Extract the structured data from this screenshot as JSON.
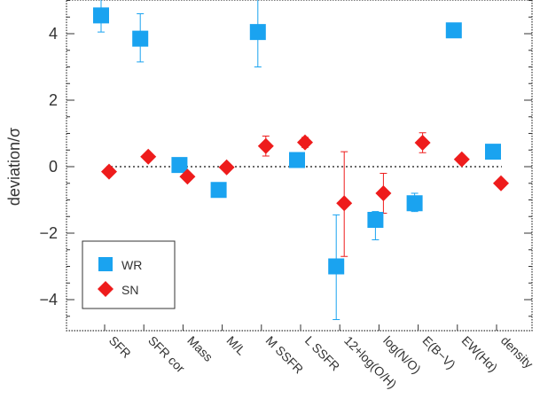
{
  "chart_data": {
    "type": "scatter",
    "title": "",
    "xlabel": "",
    "ylabel": "deviation/σ",
    "ylim": [
      -5,
      5
    ],
    "yticks": [
      "−4",
      "−2",
      "0",
      "2",
      "4"
    ],
    "ytick_values": [
      -4,
      -2,
      0,
      2,
      4
    ],
    "categories": [
      "SFR",
      "SFR cor",
      "Mass",
      "M/L",
      "M SSFR",
      "L SSFR",
      "12+log(O/H)",
      "log(N/O)",
      "E(B−V)",
      "EW(Hα)",
      "density"
    ],
    "zero_line": "dotted",
    "legend_position": "bottom-left",
    "series": [
      {
        "name": "WR",
        "marker": "square",
        "color": "#1aa3f0",
        "points": [
          {
            "category": "SFR",
            "y": 4.55,
            "err_low": 0.5,
            "err_high": 0.5
          },
          {
            "category": "SFR cor",
            "y": 3.85,
            "err_low": 0.7,
            "err_high": 0.75
          },
          {
            "category": "Mass",
            "y": 0.05
          },
          {
            "category": "M/L",
            "y": -0.7
          },
          {
            "category": "M SSFR",
            "y": 4.05,
            "err_low": 1.05,
            "err_high": 1.05
          },
          {
            "category": "L SSFR",
            "y": 0.2
          },
          {
            "category": "12+log(O/H)",
            "y": -3.0,
            "err_low": 1.6,
            "err_high": 1.55
          },
          {
            "category": "log(N/O)",
            "y": -1.6,
            "err_low": 0.6,
            "err_high": 0.25
          },
          {
            "category": "E(B−V)",
            "y": -1.1,
            "err_low": 0.25,
            "err_high": 0.3
          },
          {
            "category": "EW(Hα)",
            "y": 4.1
          },
          {
            "category": "density",
            "y": 0.45
          }
        ]
      },
      {
        "name": "SN",
        "marker": "diamond",
        "color": "#ee1c1c",
        "points": [
          {
            "category": "SFR",
            "y": -0.15
          },
          {
            "category": "SFR cor",
            "y": 0.3
          },
          {
            "category": "Mass",
            "y": -0.3
          },
          {
            "category": "M/L",
            "y": -0.02
          },
          {
            "category": "M SSFR",
            "y": 0.62,
            "err_low": 0.3,
            "err_high": 0.3
          },
          {
            "category": "L SSFR",
            "y": 0.73,
            "err_low": 0.15,
            "err_high": 0.15
          },
          {
            "category": "12+log(O/H)",
            "y": -1.1,
            "err_low": 1.6,
            "err_high": 1.55
          },
          {
            "category": "log(N/O)",
            "y": -0.8,
            "err_low": 0.6,
            "err_high": 0.6
          },
          {
            "category": "E(B−V)",
            "y": 0.72,
            "err_low": 0.3,
            "err_high": 0.3
          },
          {
            "category": "EW(Hα)",
            "y": 0.22
          },
          {
            "category": "density",
            "y": -0.5
          }
        ]
      }
    ],
    "legend": [
      {
        "label": "WR",
        "marker": "square",
        "color": "#1aa3f0"
      },
      {
        "label": "SN",
        "marker": "diamond",
        "color": "#ee1c1c"
      }
    ]
  }
}
